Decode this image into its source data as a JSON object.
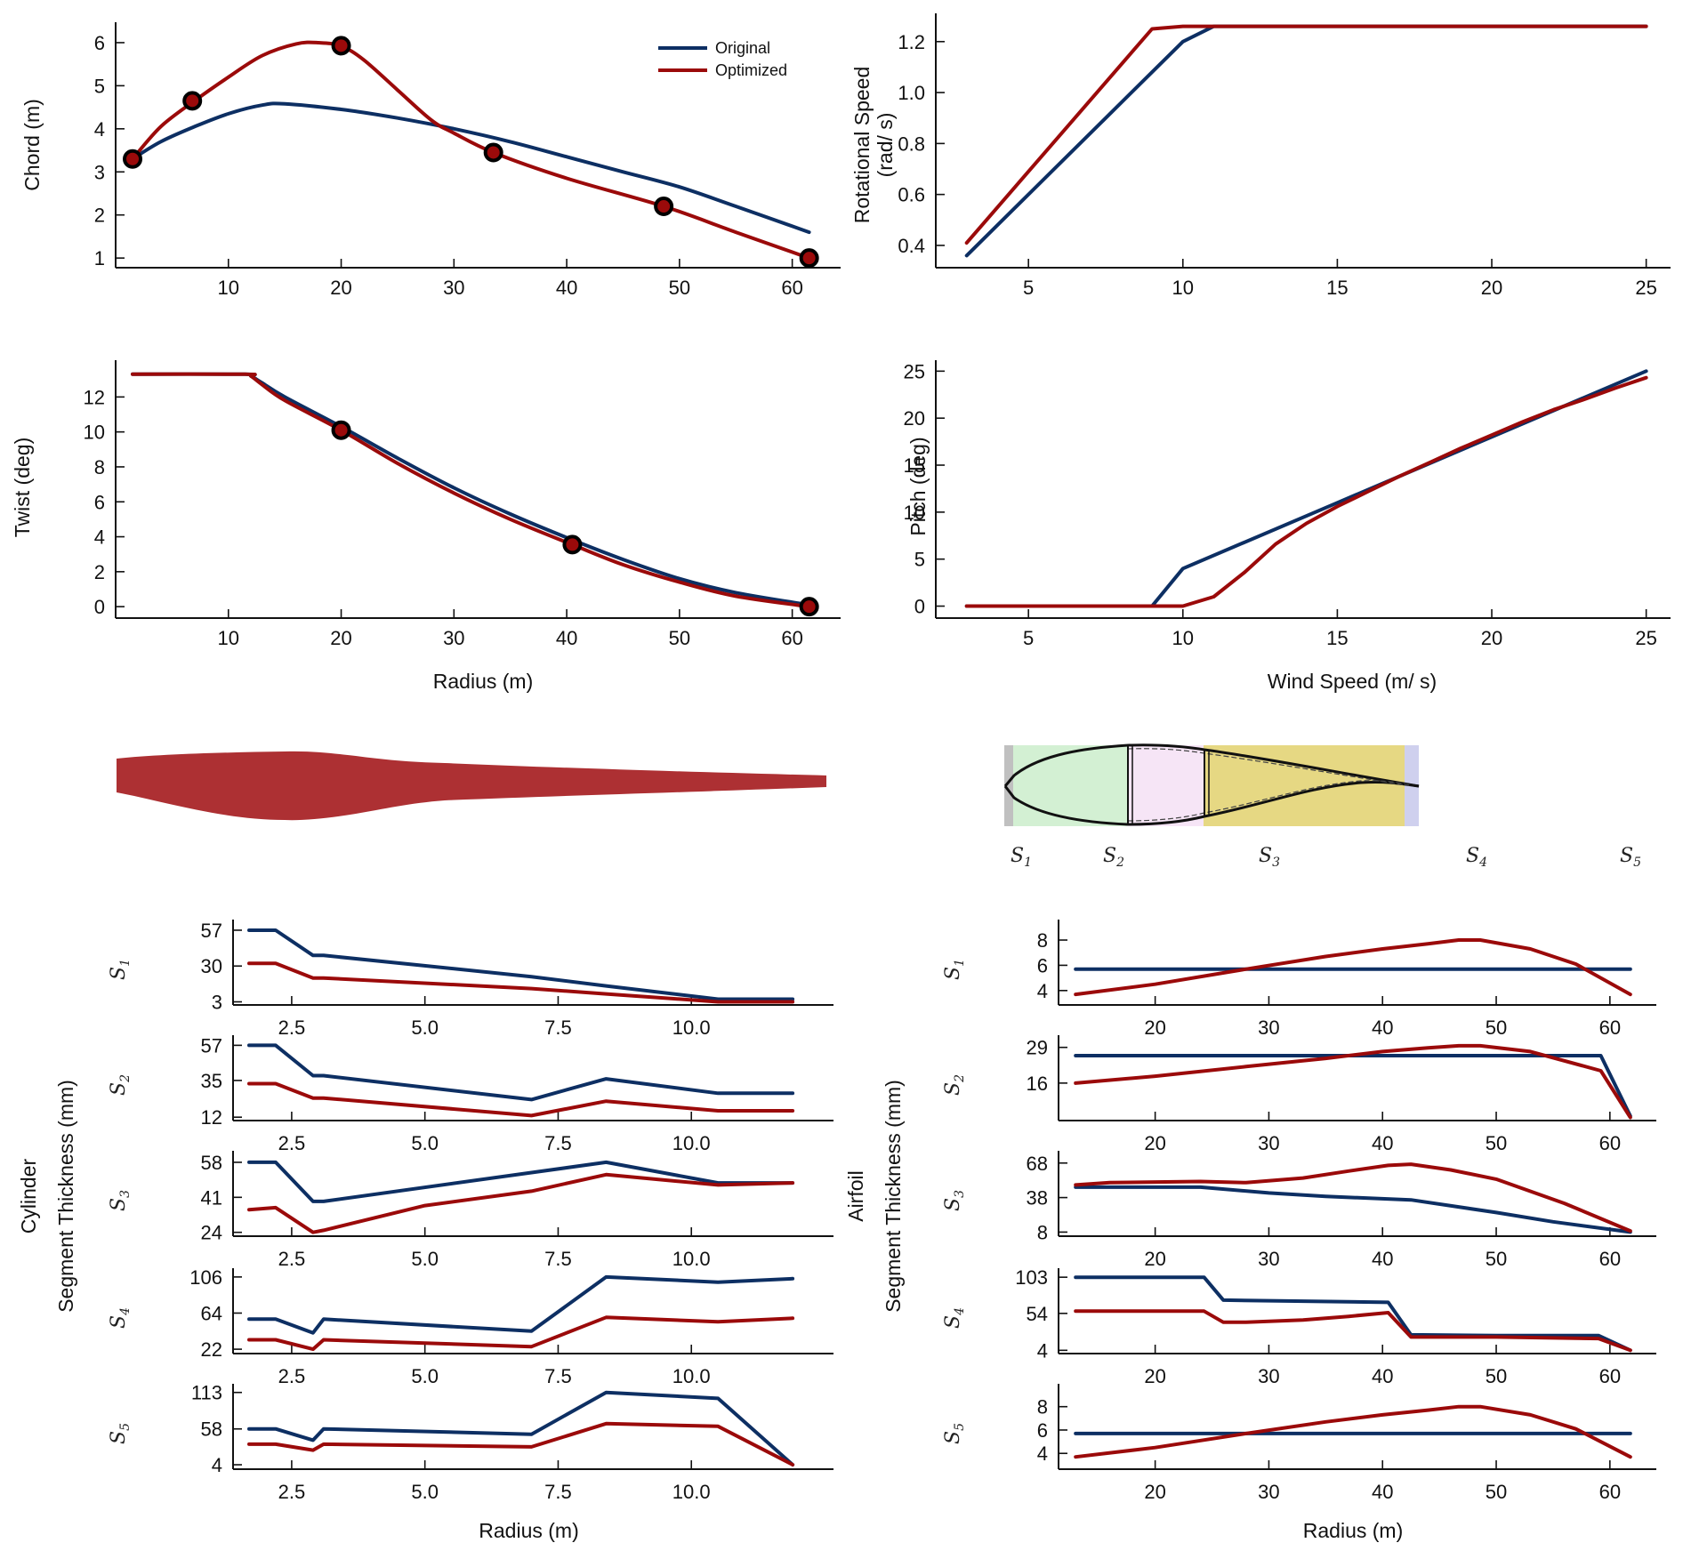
{
  "colors": {
    "original": "#0d2f63",
    "optimized": "#9b0a0a",
    "blade": "#ad3033",
    "axis": "#111111"
  },
  "legend": {
    "items": [
      {
        "label": "Original",
        "series": "original"
      },
      {
        "label": "Optimized",
        "series": "optimized"
      }
    ],
    "placement": "top-right of chord plot"
  },
  "labels": {
    "radius": "Radius (m)",
    "wind_speed": "Wind Speed (m/ s)",
    "cyl_group": "Cylinder",
    "air_group": "Airfoil",
    "seg_thick": "Segment Thickness (mm)"
  },
  "section": {
    "segments": [
      "S1",
      "S2",
      "S3",
      "S4",
      "S5"
    ],
    "segment_colors": [
      "#c0c0c0",
      "#d3f0d3",
      "#f6e5f6",
      "#e6d883",
      "#cfd0ee"
    ]
  },
  "chart_data": [
    {
      "id": "chord",
      "type": "line",
      "title": "",
      "xlabel": "",
      "ylabel": "Chord (m)",
      "xlim": [
        0,
        63.5
      ],
      "ylim": [
        0.9,
        6.35
      ],
      "xticks": [
        10,
        20,
        30,
        40,
        50,
        60
      ],
      "yticks": [
        1,
        2,
        3,
        4,
        5,
        6
      ],
      "grid": false,
      "series": [
        {
          "name": "Original",
          "x": [
            1.5,
            4,
            7,
            10,
            13,
            15,
            20,
            25,
            30,
            35,
            40,
            45,
            50,
            55,
            61.5
          ],
          "y": [
            3.3,
            3.7,
            4.05,
            4.35,
            4.55,
            4.58,
            4.45,
            4.25,
            4.0,
            3.7,
            3.35,
            3.0,
            2.65,
            2.2,
            1.6
          ]
        },
        {
          "name": "Optimized",
          "x": [
            1.5,
            4,
            7,
            10,
            13,
            16,
            18,
            20,
            22,
            25,
            28,
            30,
            33.5,
            40,
            48.6,
            55,
            61.5
          ],
          "y": [
            3.3,
            4.05,
            4.65,
            5.2,
            5.7,
            5.97,
            6.0,
            5.92,
            5.6,
            4.9,
            4.2,
            3.9,
            3.45,
            2.85,
            2.2,
            1.6,
            1.0
          ]
        }
      ],
      "control_points": {
        "x": [
          1.5,
          6.8,
          20,
          33.5,
          48.6,
          61.5
        ],
        "y": [
          3.3,
          4.65,
          5.93,
          3.45,
          2.2,
          1.0
        ]
      }
    },
    {
      "id": "rotational-speed",
      "type": "line",
      "xlabel": "",
      "ylabel": "Rotational Speed (rad/ s)",
      "xlim": [
        2,
        25.5
      ],
      "ylim": [
        0.33,
        1.29
      ],
      "xticks": [
        5,
        10,
        15,
        20,
        25
      ],
      "yticks": [
        0.4,
        0.6,
        0.8,
        1.0,
        1.2
      ],
      "grid": false,
      "series": [
        {
          "name": "Original",
          "x": [
            3,
            10,
            11,
            25
          ],
          "y": [
            0.36,
            1.2,
            1.26,
            1.26
          ]
        },
        {
          "name": "Optimized",
          "x": [
            3,
            9,
            10,
            25
          ],
          "y": [
            0.41,
            1.25,
            1.26,
            1.26
          ]
        }
      ]
    },
    {
      "id": "twist",
      "type": "line",
      "xlabel": "Radius (m)",
      "ylabel": "Twist (deg)",
      "xlim": [
        0,
        63.5
      ],
      "ylim": [
        -0.4,
        13.8
      ],
      "xticks": [
        10,
        20,
        30,
        40,
        50,
        60
      ],
      "yticks": [
        0,
        2,
        4,
        6,
        8,
        10,
        12
      ],
      "grid": false,
      "series": [
        {
          "name": "Original",
          "x": [
            1.5,
            11.5,
            12,
            13,
            15,
            20,
            25,
            30,
            35,
            40,
            45,
            50,
            55,
            61.5
          ],
          "y": [
            13.3,
            13.3,
            13.2,
            12.8,
            12.0,
            10.3,
            8.5,
            6.8,
            5.3,
            3.95,
            2.7,
            1.6,
            0.8,
            0.1
          ]
        },
        {
          "name": "Optimized",
          "x": [
            1.5,
            11.5,
            12,
            13,
            15,
            20,
            25,
            30,
            35,
            40.5,
            45,
            50,
            55,
            61.5
          ],
          "y": [
            13.3,
            13.3,
            13.2,
            12.7,
            11.8,
            10.1,
            8.2,
            6.5,
            5.0,
            3.55,
            2.4,
            1.4,
            0.6,
            0.0
          ]
        }
      ],
      "control_points": {
        "x": [
          20,
          40.5,
          61.5
        ],
        "y": [
          10.1,
          3.55,
          0.0
        ]
      }
    },
    {
      "id": "pitch",
      "type": "line",
      "xlabel": "Wind Speed (m/ s)",
      "ylabel": "Pitch (deg)",
      "xlim": [
        2,
        25.5
      ],
      "ylim": [
        -0.8,
        25.6
      ],
      "xticks": [
        5,
        10,
        15,
        20,
        25
      ],
      "yticks": [
        0,
        5,
        10,
        15,
        20,
        25
      ],
      "grid": false,
      "series": [
        {
          "name": "Original",
          "x": [
            3,
            9,
            10,
            15,
            20,
            25
          ],
          "y": [
            0,
            0,
            4,
            11,
            18,
            25
          ]
        },
        {
          "name": "Optimized",
          "x": [
            3,
            10,
            11,
            12,
            13,
            14,
            15,
            16,
            17,
            18,
            19,
            20,
            21,
            22,
            23,
            24,
            25
          ],
          "y": [
            0,
            0,
            1,
            3.6,
            6.6,
            8.8,
            10.6,
            12.2,
            13.8,
            15.3,
            16.8,
            18.2,
            19.6,
            20.9,
            22.0,
            23.2,
            24.3
          ]
        }
      ]
    },
    {
      "id": "cylinder-thickness",
      "type": "line",
      "group": "Cylinder",
      "xlabel": "Radius (m)",
      "ylabel": "Segment Thickness (mm)",
      "xlim": [
        1.4,
        12.5
      ],
      "xticks": [
        2.5,
        5.0,
        7.5,
        10.0
      ],
      "xtick_labels": [
        "2.5",
        "5.0",
        "7.5",
        "10.0"
      ],
      "panels": [
        {
          "segment": "S1",
          "yticks": [
            3,
            30,
            57
          ],
          "ylim": [
            2,
            61
          ],
          "original": {
            "x": [
              1.7,
              2.2,
              2.9,
              3.1,
              7,
              8.4,
              10.5,
              11.9
            ],
            "y": [
              57,
              57,
              38,
              38,
              22,
              15,
              5,
              5
            ]
          },
          "optimized": {
            "x": [
              1.7,
              2.2,
              2.9,
              3.1,
              7,
              8.4,
              10.5,
              11.9
            ],
            "y": [
              32,
              32,
              21,
              21,
              13,
              9,
              3,
              3
            ]
          }
        },
        {
          "segment": "S2",
          "yticks": [
            12,
            35,
            57
          ],
          "ylim": [
            11,
            60
          ],
          "original": {
            "x": [
              1.7,
              2.2,
              2.9,
              3.1,
              7,
              8.4,
              10.5,
              11.9
            ],
            "y": [
              57,
              57,
              38,
              38,
              23,
              36,
              27,
              27
            ]
          },
          "optimized": {
            "x": [
              1.7,
              2.2,
              2.9,
              3.1,
              7,
              8.4,
              10.5,
              11.9
            ],
            "y": [
              33,
              33,
              24,
              24,
              13,
              22,
              16,
              16
            ]
          }
        },
        {
          "segment": "S3",
          "yticks": [
            24,
            41,
            58
          ],
          "ylim": [
            23,
            61
          ],
          "original": {
            "x": [
              1.7,
              2.2,
              2.9,
              3.1,
              7,
              8.4,
              10.5,
              11.9
            ],
            "y": [
              58,
              58,
              39,
              39,
              53,
              58,
              48,
              48
            ]
          },
          "optimized": {
            "x": [
              1.7,
              2.2,
              2.9,
              3.1,
              5,
              7,
              8.4,
              10.5,
              11.9
            ],
            "y": [
              35,
              36,
              24,
              25,
              37,
              44,
              52,
              47,
              48
            ]
          }
        },
        {
          "segment": "S4",
          "yticks": [
            22,
            64,
            106
          ],
          "ylim": [
            19,
            110
          ],
          "original": {
            "x": [
              1.7,
              2.2,
              2.9,
              3.1,
              7,
              8.4,
              10.5,
              11.9
            ],
            "y": [
              57,
              57,
              41,
              57,
              43,
              106,
              100,
              104
            ]
          },
          "optimized": {
            "x": [
              1.7,
              2.2,
              2.9,
              3.1,
              7,
              8.4,
              10.5,
              11.9
            ],
            "y": [
              33,
              33,
              22,
              33,
              25,
              59,
              54,
              58
            ]
          }
        },
        {
          "segment": "S5",
          "yticks": [
            4,
            58,
            113
          ],
          "ylim": [
            0,
            118
          ],
          "original": {
            "x": [
              1.7,
              2.2,
              2.9,
              3.1,
              7,
              8.4,
              10.5,
              11.9
            ],
            "y": [
              58,
              58,
              41,
              58,
              50,
              113,
              104,
              4
            ]
          },
          "optimized": {
            "x": [
              1.7,
              2.2,
              2.9,
              3.1,
              7,
              8.4,
              10.5,
              11.9
            ],
            "y": [
              35,
              35,
              26,
              35,
              31,
              66,
              62,
              4
            ]
          }
        }
      ]
    },
    {
      "id": "airfoil-thickness",
      "type": "line",
      "group": "Airfoil",
      "xlabel": "Radius (m)",
      "ylabel": "Segment Thickness (mm)",
      "xlim": [
        11.5,
        63.3
      ],
      "xticks": [
        20,
        30,
        40,
        50,
        60
      ],
      "xtick_labels": [
        "20",
        "30",
        "40",
        "50",
        "60"
      ],
      "panels": [
        {
          "segment": "S1",
          "yticks": [
            4,
            6,
            8
          ],
          "ylim": [
            3,
            9.2
          ],
          "original": {
            "x": [
              13,
              61.8
            ],
            "y": [
              5.7,
              5.7
            ]
          },
          "optimized": {
            "x": [
              13,
              20,
              28,
              35,
              40,
              44,
              46.7,
              48.6,
              53,
              57,
              61.8
            ],
            "y": [
              3.7,
              4.5,
              5.7,
              6.7,
              7.3,
              7.7,
              8.0,
              8.0,
              7.3,
              6.1,
              3.7
            ]
          }
        },
        {
          "segment": "S2",
          "yticks": [
            16,
            29
          ],
          "ylim": [
            3,
            31.5
          ],
          "original": {
            "x": [
              13,
              59.2,
              61.8
            ],
            "y": [
              26,
              26,
              4
            ]
          },
          "optimized": {
            "x": [
              13,
              20,
              28,
              35,
              40,
              44,
              46.7,
              48.6,
              53,
              59.2,
              61.8
            ],
            "y": [
              16,
              18.5,
              22,
              25,
              27.5,
              28.8,
              29.6,
              29.6,
              27.5,
              20.5,
              3.5
            ]
          }
        },
        {
          "segment": "S3",
          "yticks": [
            8,
            38,
            68
          ],
          "ylim": [
            6,
            74
          ],
          "original": {
            "x": [
              13,
              24,
              30,
              35,
              42.5,
              50,
              55,
              61.8
            ],
            "y": [
              47,
              47,
              42,
              39,
              36,
              25,
              17,
              8
            ]
          },
          "optimized": {
            "x": [
              13,
              16,
              24,
              28,
              33,
              37,
              40.5,
              42.5,
              46,
              50,
              56,
              61.8
            ],
            "y": [
              49,
              51,
              52,
              51,
              55,
              61,
              66,
              67,
              62,
              54,
              33,
              9
            ]
          }
        },
        {
          "segment": "S4",
          "yticks": [
            4,
            54,
            103
          ],
          "ylim": [
            2,
            108
          ],
          "original": {
            "x": [
              13,
              24.3,
              26,
              40.5,
              42.5,
              50,
              59,
              61.8
            ],
            "y": [
              103,
              103,
              72,
              69,
              25,
              24,
              24,
              4
            ]
          },
          "optimized": {
            "x": [
              13,
              24.3,
              26,
              28,
              33,
              37,
              40.5,
              42.5,
              50,
              59,
              61.8
            ],
            "y": [
              57,
              57,
              42,
              42,
              45,
              50,
              55,
              22,
              22,
              20,
              4
            ]
          }
        },
        {
          "segment": "S5",
          "yticks": [
            4,
            6,
            8
          ],
          "ylim": [
            2.8,
            9.5
          ],
          "original": {
            "x": [
              13,
              61.8
            ],
            "y": [
              5.7,
              5.7
            ]
          },
          "optimized": {
            "x": [
              13,
              20,
              28,
              35,
              40,
              44,
              46.7,
              48.6,
              53,
              57,
              61.8
            ],
            "y": [
              3.7,
              4.5,
              5.7,
              6.7,
              7.3,
              7.7,
              8.0,
              8.0,
              7.3,
              6.1,
              3.7
            ]
          }
        }
      ]
    }
  ]
}
